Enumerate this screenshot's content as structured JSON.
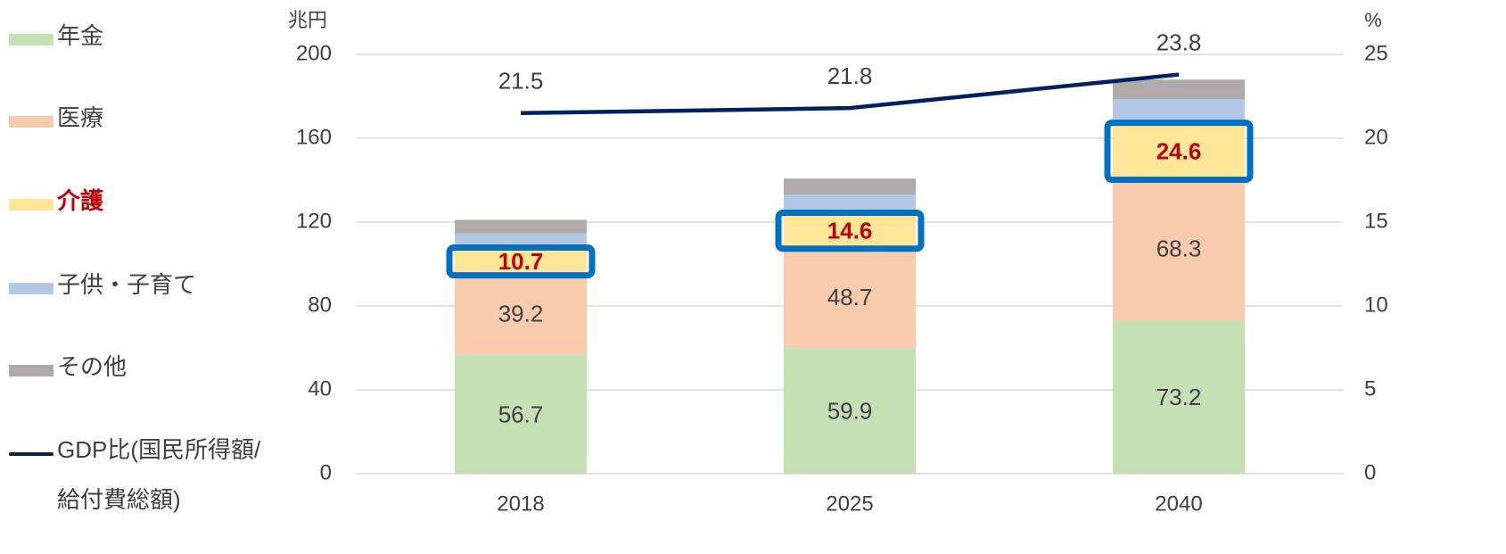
{
  "chart_data": {
    "type": "stacked_bar_line",
    "y_unit": "兆円",
    "y2_unit": "%",
    "categories": [
      "2018",
      "2025",
      "2040"
    ],
    "series": [
      {
        "name": "年金",
        "color": "#c5e0b4",
        "values": [
          56.7,
          59.9,
          73.2
        ],
        "data_labels": true
      },
      {
        "name": "医療",
        "color": "#f8cbad",
        "values": [
          39.2,
          48.7,
          68.3
        ],
        "data_labels": true
      },
      {
        "name": "介護",
        "color": "#ffe699",
        "values": [
          10.7,
          14.6,
          24.6
        ],
        "data_labels": true,
        "highlight": "#0070c0",
        "label_color": "#c00000"
      },
      {
        "name": "子供・子育て",
        "color": "#b4c7e7",
        "values": [
          8,
          10,
          12.6
        ],
        "data_labels": false
      },
      {
        "name": "その他",
        "color": "#afabab",
        "values": [
          6.5,
          7.6,
          9.3
        ],
        "data_labels": false
      },
      {
        "name": "GDP比(国民所得額/給付費総額)",
        "type": "line",
        "axis": "y2",
        "color": "#002060",
        "values": [
          21.5,
          21.8,
          23.8
        ],
        "data_labels": true
      }
    ],
    "ylim": [
      0,
      200
    ],
    "yticks": [
      0,
      40,
      80,
      120,
      160,
      200
    ],
    "y2lim": [
      0,
      25
    ],
    "y2ticks": [
      0,
      5,
      10,
      15,
      20,
      25
    ],
    "grid": true,
    "legend": "left"
  }
}
